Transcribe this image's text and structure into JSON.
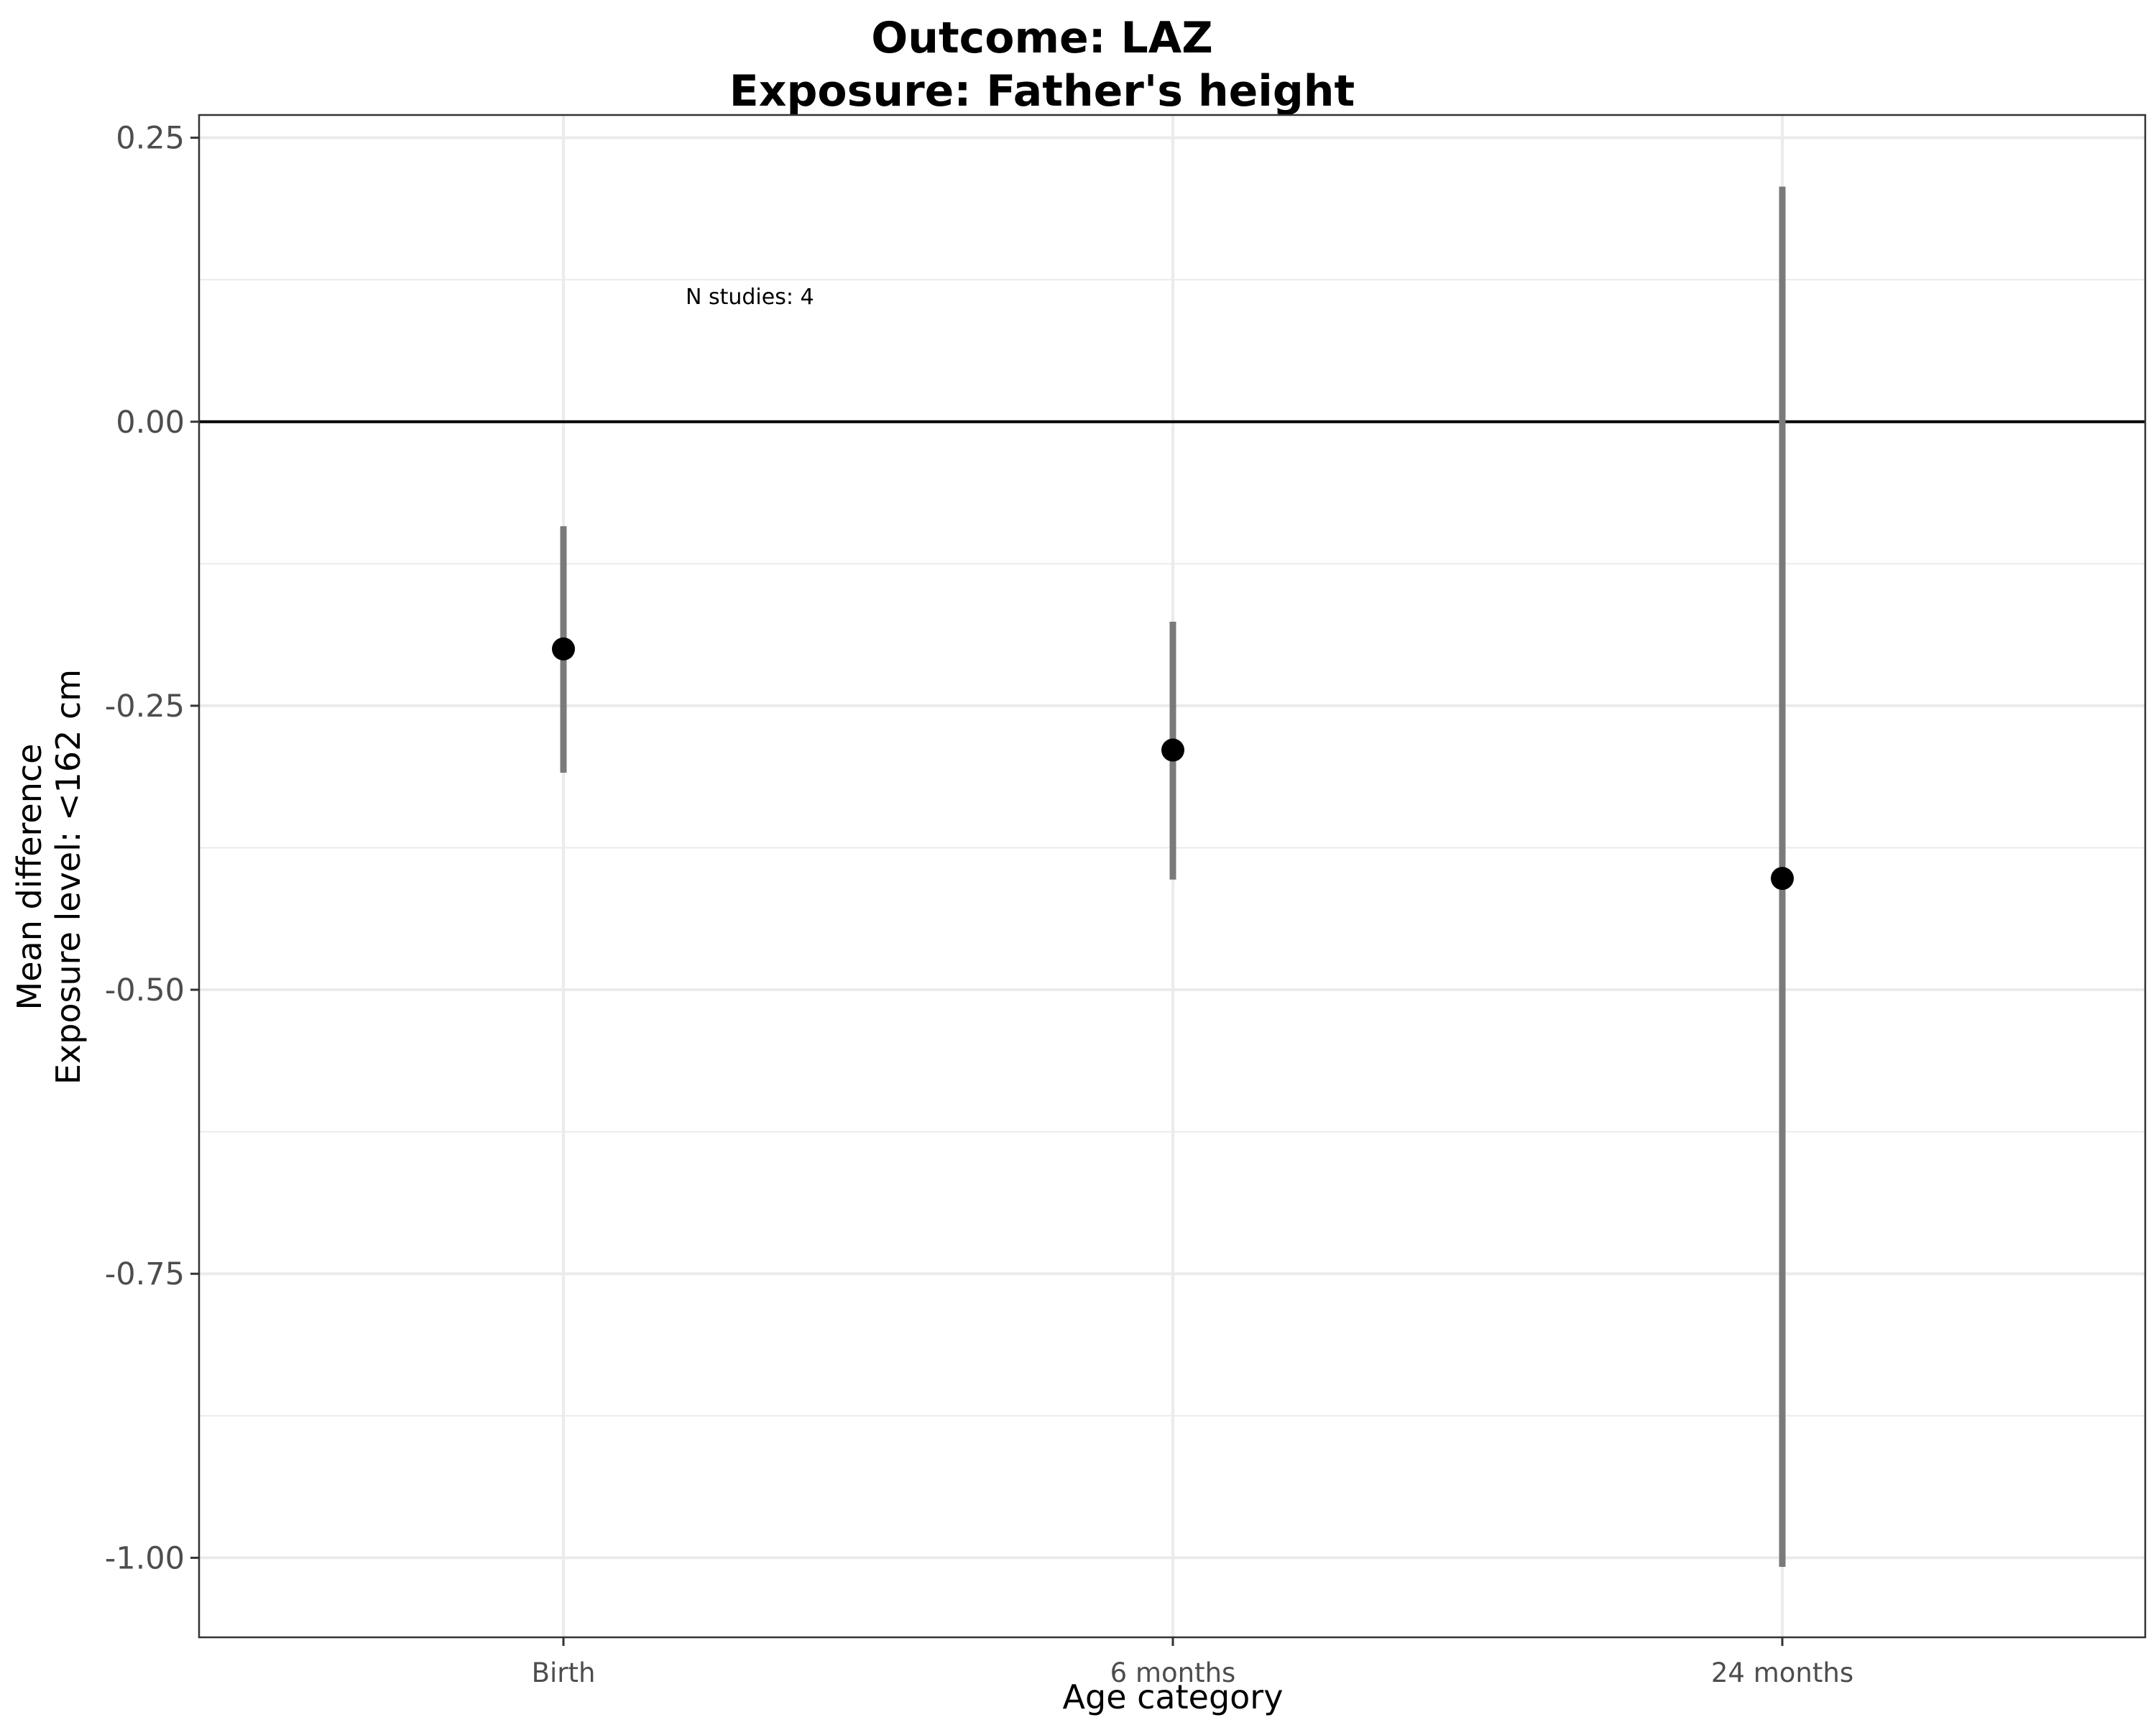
{
  "chart_data": {
    "type": "scatter",
    "title_line1": "Outcome: LAZ",
    "title_line2": "Exposure: Father's height",
    "xlabel": "Age category",
    "ylabel_line1": "Mean difference",
    "ylabel_line2": "Exposure level: <162 cm",
    "categories": [
      "Birth",
      "6 months",
      "24 months"
    ],
    "estimates": [
      -0.2,
      -0.289,
      -0.402
    ],
    "ci_lower": [
      -0.309,
      -0.403,
      -1.008
    ],
    "ci_upper": [
      -0.092,
      -0.176,
      0.207
    ],
    "yticks": [
      0.25,
      0.0,
      -0.25,
      -0.5,
      -0.75,
      -1.0
    ],
    "ytick_labels": [
      "0.25",
      "0.00",
      "-0.25",
      "-0.50",
      "-0.75",
      "-1.00"
    ],
    "ylim": [
      -1.07,
      0.27
    ],
    "reference_line": 0,
    "annotation": "N studies: 4",
    "grid": true,
    "colors": {
      "point": "#000000",
      "errorbar": "#7a7a7a",
      "grid": "#ebebeb",
      "refline": "#000000",
      "panel_border": "#333333"
    }
  }
}
